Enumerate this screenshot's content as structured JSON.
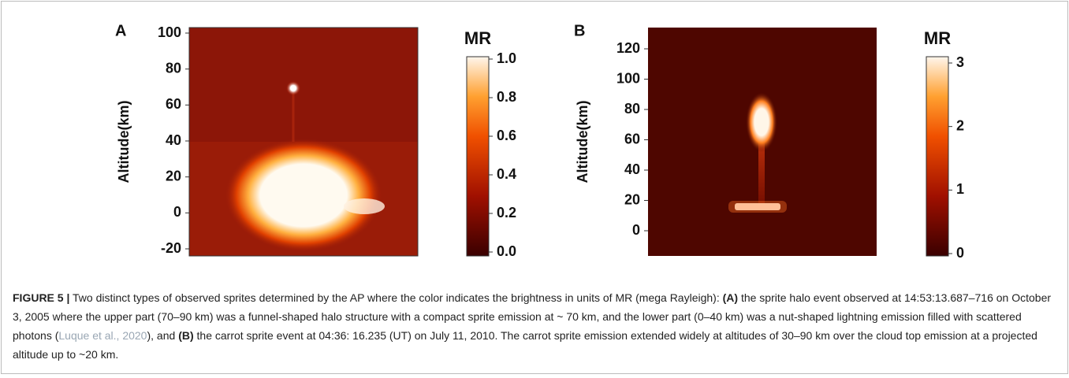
{
  "panels": [
    {
      "label": "A",
      "axis_label": "Altitude(km)",
      "yticks": [
        "100",
        "80",
        "60",
        "40",
        "20",
        "0",
        "-20"
      ],
      "colorbar": {
        "title": "MR",
        "ticks": [
          "1.0",
          "0.8",
          "0.6",
          "0.4",
          "0.2",
          "0.0"
        ]
      }
    },
    {
      "label": "B",
      "axis_label": "Altitude(km)",
      "yticks": [
        "120",
        "100",
        "80",
        "60",
        "40",
        "20",
        "0"
      ],
      "colorbar": {
        "title": "MR",
        "ticks": [
          "3",
          "2",
          "1",
          "0"
        ]
      }
    }
  ],
  "caption": {
    "segments": [
      "FIGURE 5 |",
      " Two distinct types of observed sprites determined by the AP where the color indicates the brightness in units of MR (mega Rayleigh): ",
      "(A)",
      " the sprite halo event observed at 14:53:13.687–716 on October 3, 2005 where the upper part (70–90 km) was a funnel-shaped halo structure with a compact sprite emission at ~ 70 km, and the lower part (0–40 km) was a nut-shaped lightning emission filled with scattered photons (",
      "Luque et al., 2020",
      "), and ",
      "(B)",
      " the carrot sprite event at 04:36: 16.235 (UT) on July 11, 2010. The carrot sprite emission extended widely at altitudes of 30–90 km over the cloud top emission at a projected altitude up to ~20 km."
    ]
  }
}
